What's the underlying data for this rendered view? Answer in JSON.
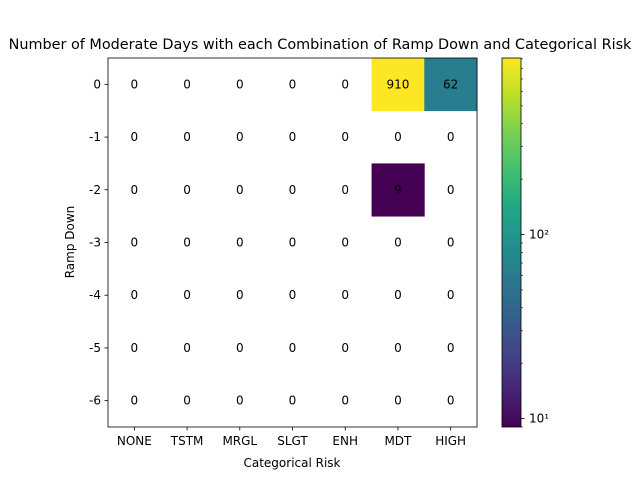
{
  "chart_data": {
    "type": "heatmap",
    "title": "Number of Moderate Days with each Combination of Ramp Down and Categorical Risk",
    "xlabel": "Categorical Risk",
    "ylabel": "Ramp Down",
    "x_categories": [
      "NONE",
      "TSTM",
      "MRGL",
      "SLGT",
      "ENH",
      "MDT",
      "HIGH"
    ],
    "y_categories": [
      "0",
      "-1",
      "-2",
      "-3",
      "-4",
      "-5",
      "-6"
    ],
    "values": [
      [
        0,
        0,
        0,
        0,
        0,
        910,
        62
      ],
      [
        0,
        0,
        0,
        0,
        0,
        0,
        0
      ],
      [
        0,
        0,
        0,
        0,
        0,
        9,
        0
      ],
      [
        0,
        0,
        0,
        0,
        0,
        0,
        0
      ],
      [
        0,
        0,
        0,
        0,
        0,
        0,
        0
      ],
      [
        0,
        0,
        0,
        0,
        0,
        0,
        0
      ],
      [
        0,
        0,
        0,
        0,
        0,
        0,
        0
      ]
    ],
    "color_scale": "log",
    "colormap": "viridis",
    "zero_cells": "blank",
    "colorbar": {
      "vmin": 9,
      "vmax": 910,
      "major_ticks": [
        {
          "value": 10,
          "label": "10¹"
        },
        {
          "value": 100,
          "label": "10²"
        }
      ]
    },
    "grid": false
  }
}
